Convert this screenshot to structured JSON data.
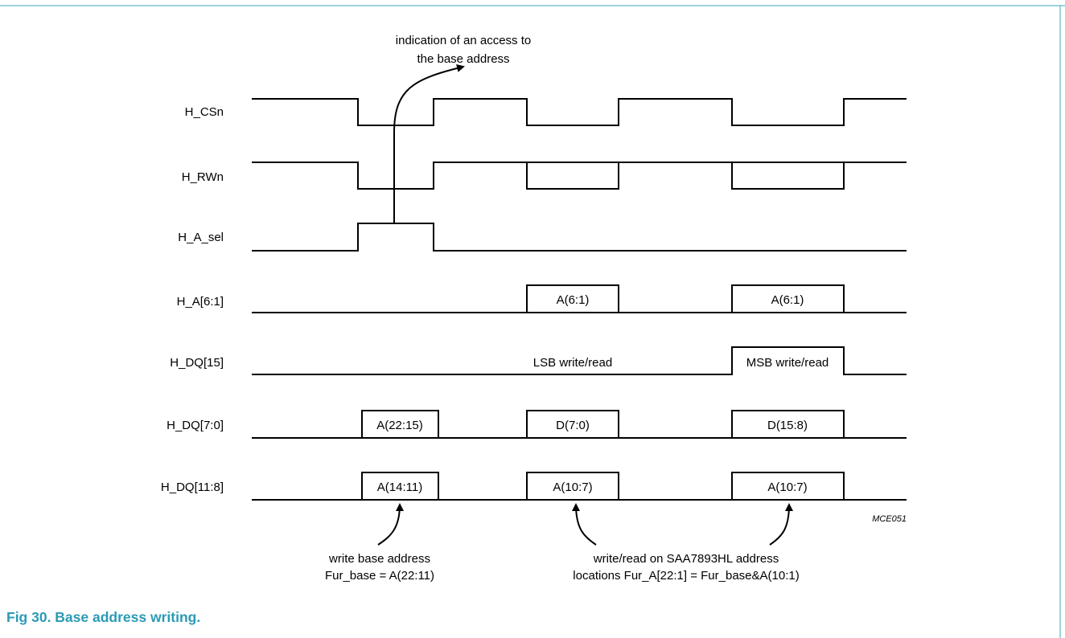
{
  "figure": {
    "caption": "Fig 30.  Base address writing.",
    "code": "MCE051",
    "accent_color": "#2a9bb5"
  },
  "signals": [
    {
      "name": "H_CSn"
    },
    {
      "name": "H_RWn"
    },
    {
      "name": "H_A_sel"
    },
    {
      "name": "H_A[6:1]"
    },
    {
      "name": "H_DQ[15]"
    },
    {
      "name": "H_DQ[7:0]"
    },
    {
      "name": "H_DQ[11:8]"
    }
  ],
  "boxes": {
    "a_sel_1": "A(6:1)",
    "a_sel_2": "A(6:1)",
    "dq15_lsb": "LSB write/read",
    "dq15_msb": "MSB write/read",
    "dq70_1": "A(22:15)",
    "dq70_2": "D(7:0)",
    "dq70_3": "D(15:8)",
    "dq118_1": "A(14:11)",
    "dq118_2": "A(10:7)",
    "dq118_3": "A(10:7)"
  },
  "annotations": {
    "top_line1": "indication of an access to",
    "top_line2": "the base address",
    "base_line1": "write base address",
    "base_line2": "Fur_base = A(22:11)",
    "rw_line1": "write/read on SAA7893HL address",
    "rw_line2": "locations Fur_A[22:1] = Fur_base&A(10:1)"
  }
}
